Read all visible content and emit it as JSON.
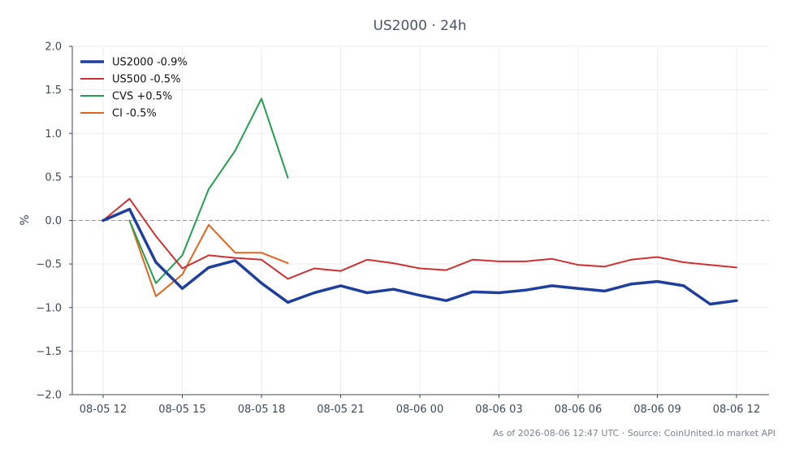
{
  "chart_data": {
    "type": "line",
    "title": "US2000 · 24h",
    "xlabel": "",
    "ylabel": "%",
    "ylim": [
      -2.0,
      2.0
    ],
    "yticks": [
      2.0,
      1.5,
      1.0,
      0.5,
      0.0,
      -0.5,
      -1.0,
      -1.5,
      -2.0
    ],
    "ytick_labels": [
      "2.0",
      "1.5",
      "1.0",
      "0.5",
      "0.0",
      "−0.5",
      "−1.0",
      "−1.5",
      "−2.0"
    ],
    "xticks": [
      "08-05 12",
      "08-05 15",
      "08-05 18",
      "08-05 21",
      "08-06 00",
      "08-06 03",
      "08-06 06",
      "08-06 09",
      "08-06 12"
    ],
    "x_hours": [
      0,
      1,
      2,
      3,
      4,
      5,
      6,
      7,
      8,
      9,
      10,
      11,
      12,
      13,
      14,
      15,
      16,
      17,
      18,
      19,
      20,
      21,
      22,
      23,
      24
    ],
    "baseline": 0.0,
    "grid": true,
    "legend_position": "top-left",
    "series": [
      {
        "name": "US2000 -0.9%",
        "color": "#1f3f9e",
        "bold": true,
        "x": [
          0,
          1,
          2,
          3,
          4,
          5,
          6,
          7,
          8,
          9,
          10,
          11,
          12,
          13,
          14,
          15,
          16,
          17,
          18,
          19,
          20,
          21,
          22,
          23,
          24
        ],
        "values": [
          0.0,
          0.13,
          -0.48,
          -0.78,
          -0.54,
          -0.46,
          -0.72,
          -0.94,
          -0.83,
          -0.75,
          -0.83,
          -0.79,
          -0.86,
          -0.92,
          -0.82,
          -0.83,
          -0.8,
          -0.75,
          -0.78,
          -0.81,
          -0.73,
          -0.7,
          -0.75,
          -0.96,
          -0.92
        ]
      },
      {
        "name": "US500 -0.5%",
        "color": "#d03030",
        "bold": false,
        "x": [
          0,
          1,
          2,
          3,
          4,
          5,
          6,
          7,
          8,
          9,
          10,
          11,
          12,
          13,
          14,
          15,
          16,
          17,
          18,
          19,
          20,
          21,
          22,
          23,
          24
        ],
        "values": [
          0.0,
          0.25,
          -0.18,
          -0.55,
          -0.4,
          -0.43,
          -0.45,
          -0.67,
          -0.55,
          -0.58,
          -0.45,
          -0.49,
          -0.55,
          -0.57,
          -0.45,
          -0.47,
          -0.47,
          -0.44,
          -0.51,
          -0.53,
          -0.45,
          -0.42,
          -0.48,
          -0.51,
          -0.54
        ]
      },
      {
        "name": "CVS +0.5%",
        "color": "#22a050",
        "bold": false,
        "x": [
          1,
          2,
          3,
          4,
          5,
          6,
          7
        ],
        "values": [
          0.0,
          -0.72,
          -0.4,
          0.36,
          0.8,
          1.4,
          0.49
        ]
      },
      {
        "name": "CI -0.5%",
        "color": "#e0661e",
        "bold": false,
        "x": [
          1,
          2,
          3,
          4,
          5,
          6,
          7
        ],
        "values": [
          0.0,
          -0.87,
          -0.62,
          -0.05,
          -0.37,
          -0.37,
          -0.49
        ]
      }
    ]
  },
  "footer": "As of 2026-08-06 12:47 UTC · Source: CoinUnited.io market API"
}
